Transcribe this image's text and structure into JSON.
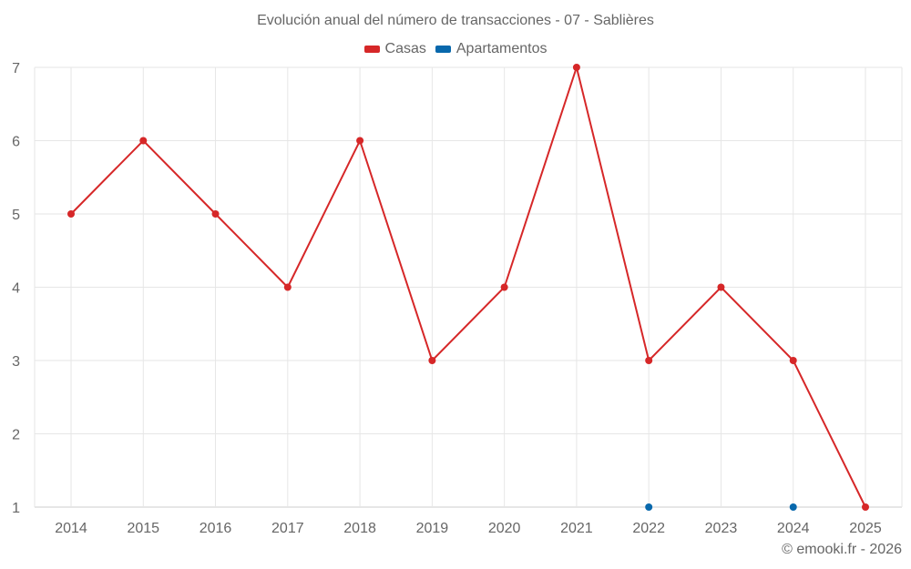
{
  "chart_data": {
    "type": "line",
    "title": "Evolución anual del número de transacciones - 07 - Sablières",
    "xlabel": "",
    "ylabel": "",
    "categories": [
      "2014",
      "2015",
      "2016",
      "2017",
      "2018",
      "2019",
      "2020",
      "2021",
      "2022",
      "2023",
      "2024",
      "2025"
    ],
    "series": [
      {
        "name": "Casas",
        "color": "#d62728",
        "values": [
          5,
          6,
          5,
          4,
          6,
          3,
          4,
          7,
          3,
          4,
          3,
          1
        ]
      },
      {
        "name": "Apartamentos",
        "color": "#0868ac",
        "values": [
          null,
          null,
          null,
          null,
          null,
          null,
          null,
          null,
          1,
          null,
          1,
          null
        ]
      }
    ],
    "yticks": [
      1,
      2,
      3,
      4,
      5,
      6,
      7
    ],
    "ylim": [
      1,
      7
    ],
    "grid": true,
    "legend_position": "top"
  },
  "header": {
    "title": "Evolución anual del número de transacciones - 07 - Sablières"
  },
  "legend": {
    "items": [
      {
        "label": "Casas",
        "color": "#d62728"
      },
      {
        "label": "Apartamentos",
        "color": "#0868ac"
      }
    ]
  },
  "footer": {
    "credit": "© emooki.fr - 2026"
  }
}
